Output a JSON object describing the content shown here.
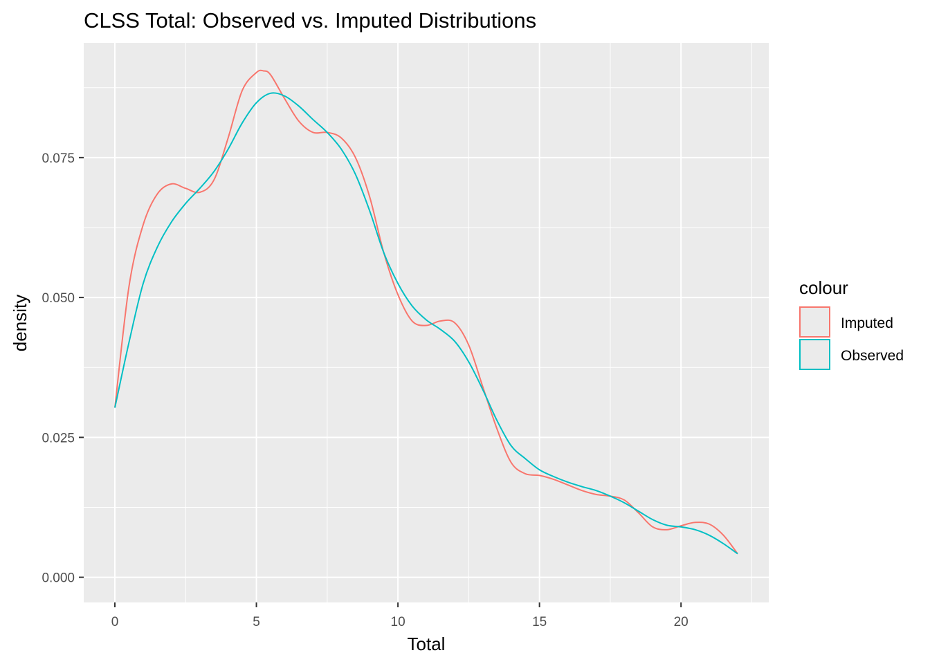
{
  "chart_data": {
    "type": "line",
    "title": "CLSS Total: Observed vs. Imputed Distributions",
    "xlabel": "Total",
    "ylabel": "density",
    "xlim": [
      -1.1,
      23.1
    ],
    "ylim": [
      -0.0045,
      0.0955
    ],
    "x_ticks": [
      0,
      5,
      10,
      15,
      20
    ],
    "x_tick_labels": [
      "0",
      "5",
      "10",
      "15",
      "20"
    ],
    "y_ticks": [
      0.0,
      0.025,
      0.05,
      0.075
    ],
    "y_tick_labels": [
      "0.000",
      "0.025",
      "0.050",
      "0.075"
    ],
    "grid": true,
    "background": "#ebebeb",
    "legend": {
      "title": "colour",
      "position": "right"
    },
    "series": [
      {
        "name": "Imputed",
        "color": "#f8766d",
        "x": [
          0,
          0.5,
          1.0,
          1.5,
          2.0,
          2.5,
          3.0,
          3.5,
          4.0,
          4.5,
          5.0,
          5.25,
          5.5,
          6.0,
          6.5,
          7.0,
          7.5,
          8.0,
          8.5,
          9.0,
          9.5,
          10.0,
          10.5,
          11.0,
          11.5,
          12.0,
          12.5,
          13.0,
          13.5,
          14.0,
          14.5,
          15.0,
          15.5,
          16.0,
          16.5,
          17.0,
          17.5,
          18.0,
          18.5,
          19.0,
          19.5,
          20.0,
          20.5,
          21.0,
          21.5,
          22.0
        ],
        "y": [
          0.0303,
          0.052,
          0.063,
          0.0685,
          0.0703,
          0.0695,
          0.0688,
          0.071,
          0.0785,
          0.087,
          0.0902,
          0.0905,
          0.0898,
          0.0855,
          0.0815,
          0.0795,
          0.0795,
          0.0785,
          0.075,
          0.068,
          0.058,
          0.0505,
          0.0458,
          0.045,
          0.0458,
          0.0455,
          0.0415,
          0.034,
          0.0265,
          0.0205,
          0.0185,
          0.0182,
          0.0175,
          0.0165,
          0.0155,
          0.0148,
          0.0145,
          0.0138,
          0.0115,
          0.009,
          0.0085,
          0.0092,
          0.0098,
          0.0095,
          0.0075,
          0.0042
        ]
      },
      {
        "name": "Observed",
        "color": "#00bfc4",
        "x": [
          0,
          0.5,
          1.0,
          1.5,
          2.0,
          2.5,
          3.0,
          3.5,
          4.0,
          4.5,
          5.0,
          5.5,
          6.0,
          6.5,
          7.0,
          7.5,
          8.0,
          8.5,
          9.0,
          9.5,
          10.0,
          10.5,
          11.0,
          11.5,
          12.0,
          12.5,
          13.0,
          13.5,
          14.0,
          14.5,
          15.0,
          15.5,
          16.0,
          16.5,
          17.0,
          17.5,
          18.0,
          18.5,
          19.0,
          19.5,
          20.0,
          20.5,
          21.0,
          21.5,
          22.0
        ],
        "y": [
          0.0303,
          0.042,
          0.0525,
          0.059,
          0.0635,
          0.0668,
          0.0695,
          0.0725,
          0.0765,
          0.0812,
          0.0848,
          0.0865,
          0.086,
          0.0842,
          0.0818,
          0.0795,
          0.0765,
          0.072,
          0.0655,
          0.058,
          0.0525,
          0.0485,
          0.046,
          0.0443,
          0.0422,
          0.0385,
          0.0335,
          0.028,
          0.0235,
          0.0212,
          0.0192,
          0.018,
          0.017,
          0.0162,
          0.0155,
          0.0145,
          0.0133,
          0.0118,
          0.0103,
          0.0093,
          0.009,
          0.0085,
          0.0075,
          0.006,
          0.0042
        ]
      }
    ]
  }
}
